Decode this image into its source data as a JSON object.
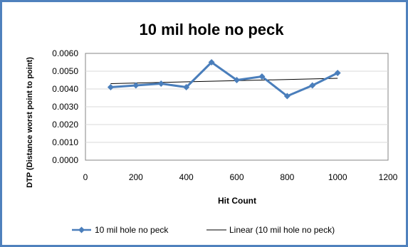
{
  "chart_data": {
    "type": "line",
    "title": "10 mil hole no peck",
    "xlabel": "Hit Count",
    "ylabel": "DTP (Distance worst point to point)",
    "xlim": [
      0,
      1200
    ],
    "ylim": [
      0,
      0.006
    ],
    "x_ticks": [
      0,
      200,
      400,
      600,
      800,
      1000,
      1200
    ],
    "y_ticks": [
      0,
      0.001,
      0.002,
      0.003,
      0.004,
      0.005,
      0.006
    ],
    "x_tick_labels": [
      "0",
      "200",
      "400",
      "600",
      "800",
      "1000",
      "1200"
    ],
    "y_tick_labels": [
      "0.0000",
      "0.0010",
      "0.0020",
      "0.0030",
      "0.0040",
      "0.0050",
      "0.0060"
    ],
    "grid": "horizontal",
    "legend_position": "bottom",
    "series": [
      {
        "name": "10 mil hole no peck",
        "color": "#4a7ebb",
        "marker": "diamond",
        "x": [
          100,
          200,
          300,
          400,
          500,
          600,
          700,
          800,
          900,
          1000
        ],
        "y": [
          0.0041,
          0.0042,
          0.0043,
          0.0041,
          0.0055,
          0.0045,
          0.0047,
          0.0036,
          0.0042,
          0.0049
        ]
      }
    ],
    "trendline": {
      "name": "Linear (10 mil hole no peck)",
      "color": "#000000",
      "x": [
        100,
        1000
      ],
      "y": [
        0.0043,
        0.0046
      ]
    }
  },
  "colors": {
    "frame_border": "#4f81bd",
    "plot_border": "#868686",
    "gridline": "#d9d9d9",
    "series": "#4a7ebb",
    "trendline": "#000000"
  }
}
